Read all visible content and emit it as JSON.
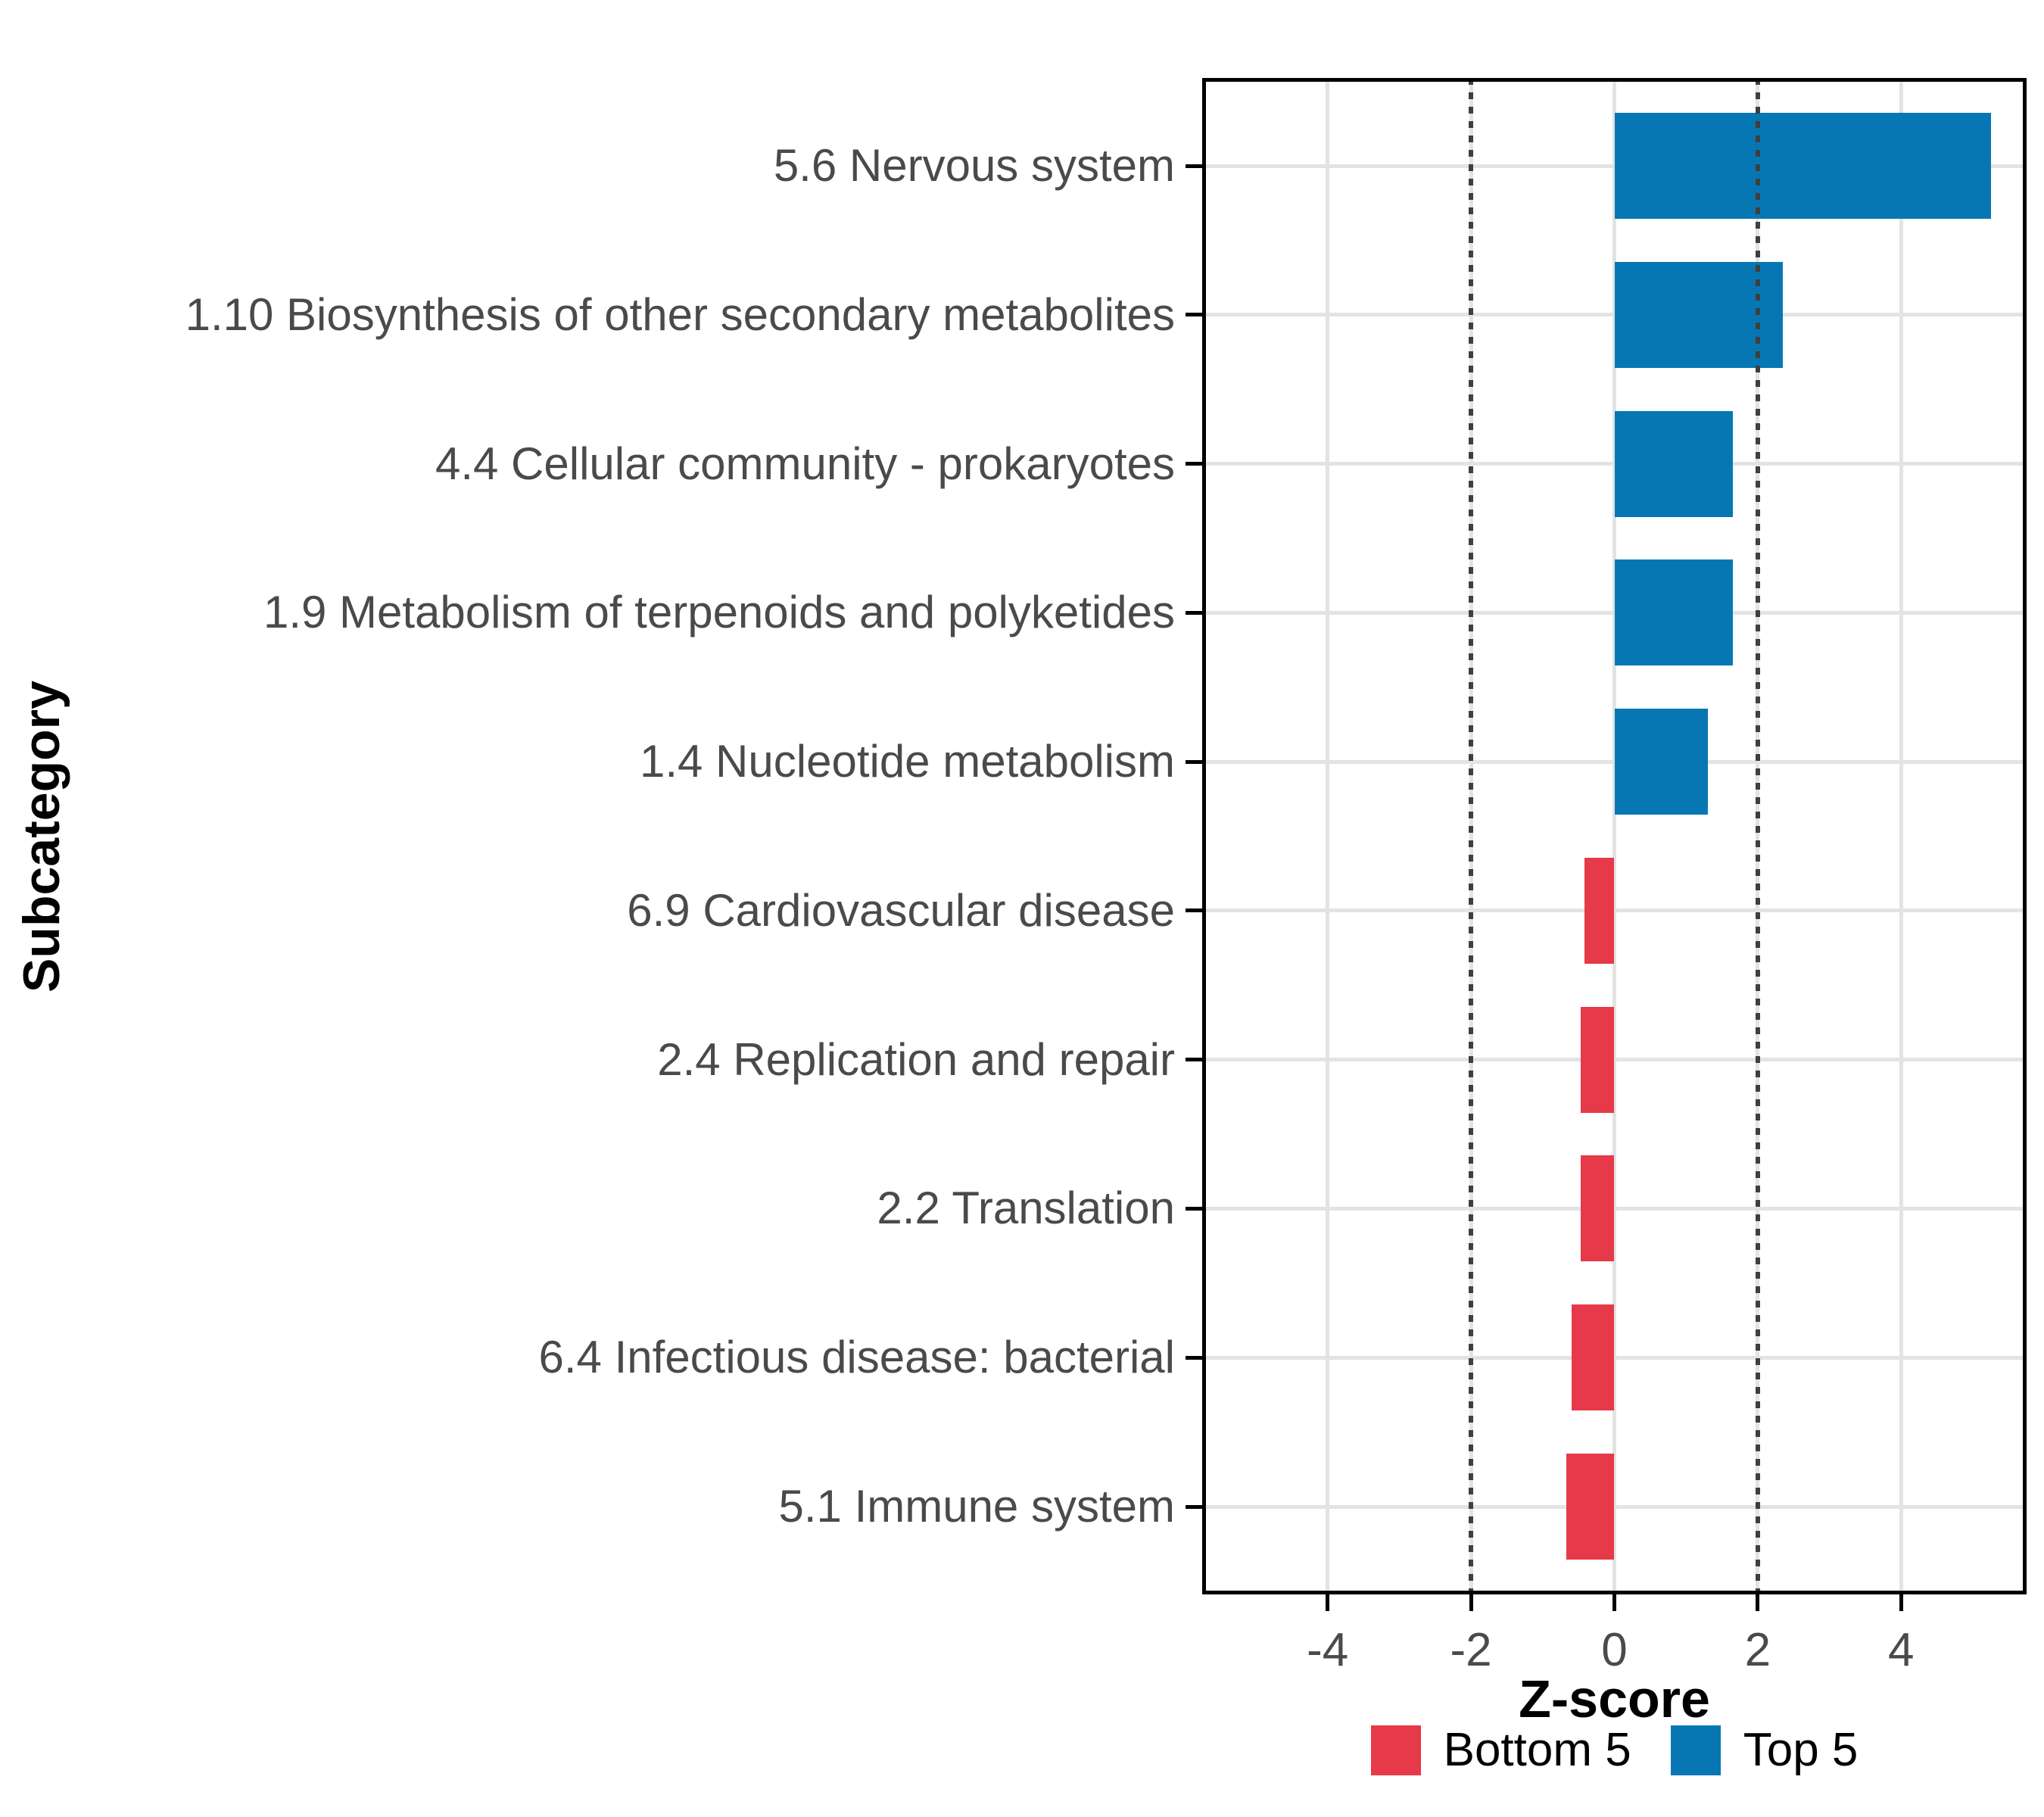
{
  "chart_data": {
    "type": "bar",
    "orientation": "horizontal",
    "title": "",
    "xlabel": "Z-score",
    "ylabel": "Subcategory",
    "xlim": [
      -5.75,
      5.75
    ],
    "x_ticks": [
      -4,
      -2,
      0,
      2,
      4
    ],
    "x_tick_labels": [
      "-4",
      "-2",
      "0",
      "2",
      "4"
    ],
    "threshold_lines": [
      -2,
      2
    ],
    "grid": true,
    "categories": [
      "5.6 Nervous system",
      "1.10 Biosynthesis of other secondary metabolites",
      "4.4 Cellular community - prokaryotes",
      "1.9 Metabolism of terpenoids and polyketides",
      "1.4 Nucleotide metabolism",
      "6.9 Cardiovascular disease",
      "2.4 Replication and repair",
      "2.2 Translation",
      "6.4 Infectious disease: bacterial",
      "5.1 Immune system"
    ],
    "values": [
      5.25,
      2.35,
      1.65,
      1.65,
      1.3,
      -0.42,
      -0.47,
      -0.47,
      -0.6,
      -0.67
    ],
    "groups": [
      "Top 5",
      "Top 5",
      "Top 5",
      "Top 5",
      "Top 5",
      "Bottom 5",
      "Bottom 5",
      "Bottom 5",
      "Bottom 5",
      "Bottom 5"
    ],
    "colors": {
      "Top 5": "#0777B4",
      "Bottom 5": "#E6394A"
    },
    "style": {
      "grid_color": "#e3e3e3",
      "threshold_color": "#3f3f3f",
      "axis_text_color": "#4a4a4a",
      "title_color": "#000000",
      "panel_border_color": "#000000"
    },
    "legend": {
      "position": "bottom",
      "entries": [
        {
          "label": "Bottom 5",
          "color": "#E6394A"
        },
        {
          "label": "Top 5",
          "color": "#0777B4"
        }
      ]
    }
  }
}
